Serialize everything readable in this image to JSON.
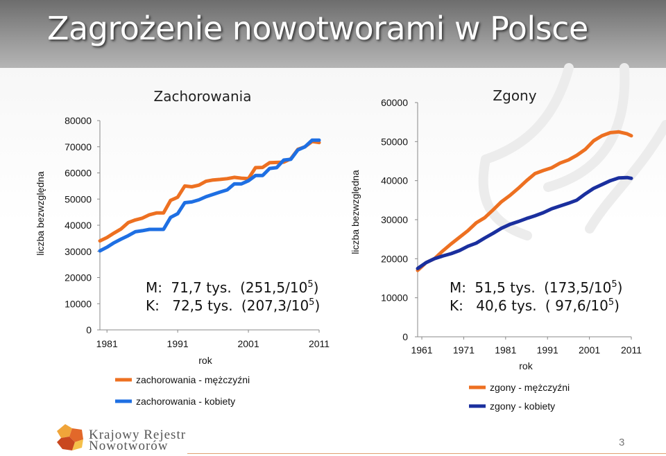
{
  "slide": {
    "title": "Zagrożenie nowotworami w Polsce",
    "page_number": "3"
  },
  "logo": {
    "line1": "Krajowy Rejestr",
    "line2": "Nowotworów"
  },
  "colors": {
    "men": "#ed7021",
    "women": "#1e6fe3",
    "women_deaths": "#1a2f9e",
    "title_band": "#8a8a8a"
  },
  "chart_data": [
    {
      "type": "line",
      "title": "Zachorowania",
      "xlabel": "rok",
      "ylabel": "liczba bezwzględna",
      "xlim": [
        1980,
        2011
      ],
      "ylim": [
        0,
        80000
      ],
      "x_ticks": [
        "1981",
        "1991",
        "2001",
        "2011"
      ],
      "y_ticks": [
        "0",
        "10000",
        "20000",
        "30000",
        "40000",
        "50000",
        "60000",
        "70000",
        "80000"
      ],
      "grid": false,
      "legend_position": "bottom",
      "series": [
        {
          "name": "zachorowania - mężczyźni",
          "color": "#ed7021",
          "x": [
            1980,
            1981,
            1982,
            1983,
            1984,
            1985,
            1986,
            1987,
            1988,
            1989,
            1990,
            1991,
            1992,
            1993,
            1994,
            1995,
            1996,
            1997,
            1998,
            1999,
            2000,
            2001,
            2002,
            2003,
            2004,
            2005,
            2006,
            2007,
            2008,
            2009,
            2010,
            2011
          ],
          "y": [
            34000,
            35300,
            37000,
            38600,
            41000,
            42000,
            42700,
            44000,
            44700,
            44700,
            49500,
            50700,
            55000,
            54700,
            55300,
            56800,
            57300,
            57500,
            57800,
            58300,
            58000,
            57800,
            62000,
            62100,
            63900,
            64000,
            64100,
            65400,
            69000,
            70000,
            72000,
            71600
          ]
        },
        {
          "name": "zachorowania - kobiety",
          "color": "#1e6fe3",
          "x": [
            1980,
            1981,
            1982,
            1983,
            1984,
            1985,
            1986,
            1987,
            1988,
            1989,
            1990,
            1991,
            1992,
            1993,
            1994,
            1995,
            1996,
            1997,
            1998,
            1999,
            2000,
            2001,
            2002,
            2003,
            2004,
            2005,
            2006,
            2007,
            2008,
            2009,
            2010,
            2011
          ],
          "y": [
            30200,
            31600,
            33300,
            34700,
            36000,
            37500,
            37900,
            38400,
            38400,
            38400,
            43000,
            44400,
            48600,
            48900,
            49700,
            50900,
            51800,
            52700,
            53500,
            55800,
            55800,
            57000,
            59000,
            59000,
            61700,
            62000,
            64900,
            65200,
            68800,
            70000,
            72500,
            72500
          ]
        }
      ],
      "annotations": [
        {
          "label": "M:",
          "value": "71,7 tys.",
          "rate": "(251,5/10",
          "rate_exp": "5",
          "rate_end": ")"
        },
        {
          "label": "K:",
          "value": "72,5 tys.",
          "rate": "(207,3/10",
          "rate_exp": "5",
          "rate_end": ")"
        }
      ]
    },
    {
      "type": "line",
      "title": "Zgony",
      "xlabel": "rok",
      "ylabel": "liczba bezwzględna",
      "xlim": [
        1960,
        2011
      ],
      "ylim": [
        0,
        60000
      ],
      "x_ticks": [
        "1961",
        "1971",
        "1981",
        "1991",
        "2001",
        "2011"
      ],
      "y_ticks": [
        "0",
        "10000",
        "20000",
        "30000",
        "40000",
        "50000",
        "60000"
      ],
      "grid": false,
      "legend_position": "bottom",
      "series": [
        {
          "name": "zgony - mężczyźni",
          "color": "#ed7021",
          "x": [
            1960,
            1962,
            1964,
            1966,
            1968,
            1970,
            1972,
            1974,
            1976,
            1978,
            1980,
            1982,
            1984,
            1986,
            1988,
            1990,
            1992,
            1994,
            1996,
            1998,
            2000,
            2002,
            2004,
            2006,
            2008,
            2010,
            2011
          ],
          "y": [
            17000,
            19000,
            20000,
            22000,
            23800,
            25500,
            27200,
            29200,
            30500,
            32500,
            34600,
            36200,
            38000,
            40000,
            41800,
            42600,
            43300,
            44500,
            45300,
            46500,
            48000,
            50200,
            51500,
            52300,
            52500,
            52000,
            51500
          ]
        },
        {
          "name": "zgony - kobiety",
          "color": "#1a2f9e",
          "x": [
            1960,
            1962,
            1964,
            1966,
            1968,
            1970,
            1972,
            1974,
            1976,
            1978,
            1980,
            1982,
            1984,
            1986,
            1988,
            1990,
            1992,
            1994,
            1996,
            1998,
            2000,
            2002,
            2004,
            2006,
            2008,
            2010,
            2011
          ],
          "y": [
            17500,
            19000,
            20000,
            20700,
            21300,
            22100,
            23200,
            24000,
            25300,
            26500,
            27800,
            28800,
            29500,
            30300,
            31000,
            31800,
            32800,
            33500,
            34200,
            35000,
            36600,
            38000,
            39000,
            40000,
            40700,
            40800,
            40600
          ]
        }
      ],
      "annotations": [
        {
          "label": "M:",
          "value": "51,5 tys.",
          "rate": "(173,5/10",
          "rate_exp": "5",
          "rate_end": ")"
        },
        {
          "label": "K:",
          "value": "40,6 tys.",
          "rate": "( 97,6/10",
          "rate_exp": "5",
          "rate_end": ")"
        }
      ]
    }
  ]
}
